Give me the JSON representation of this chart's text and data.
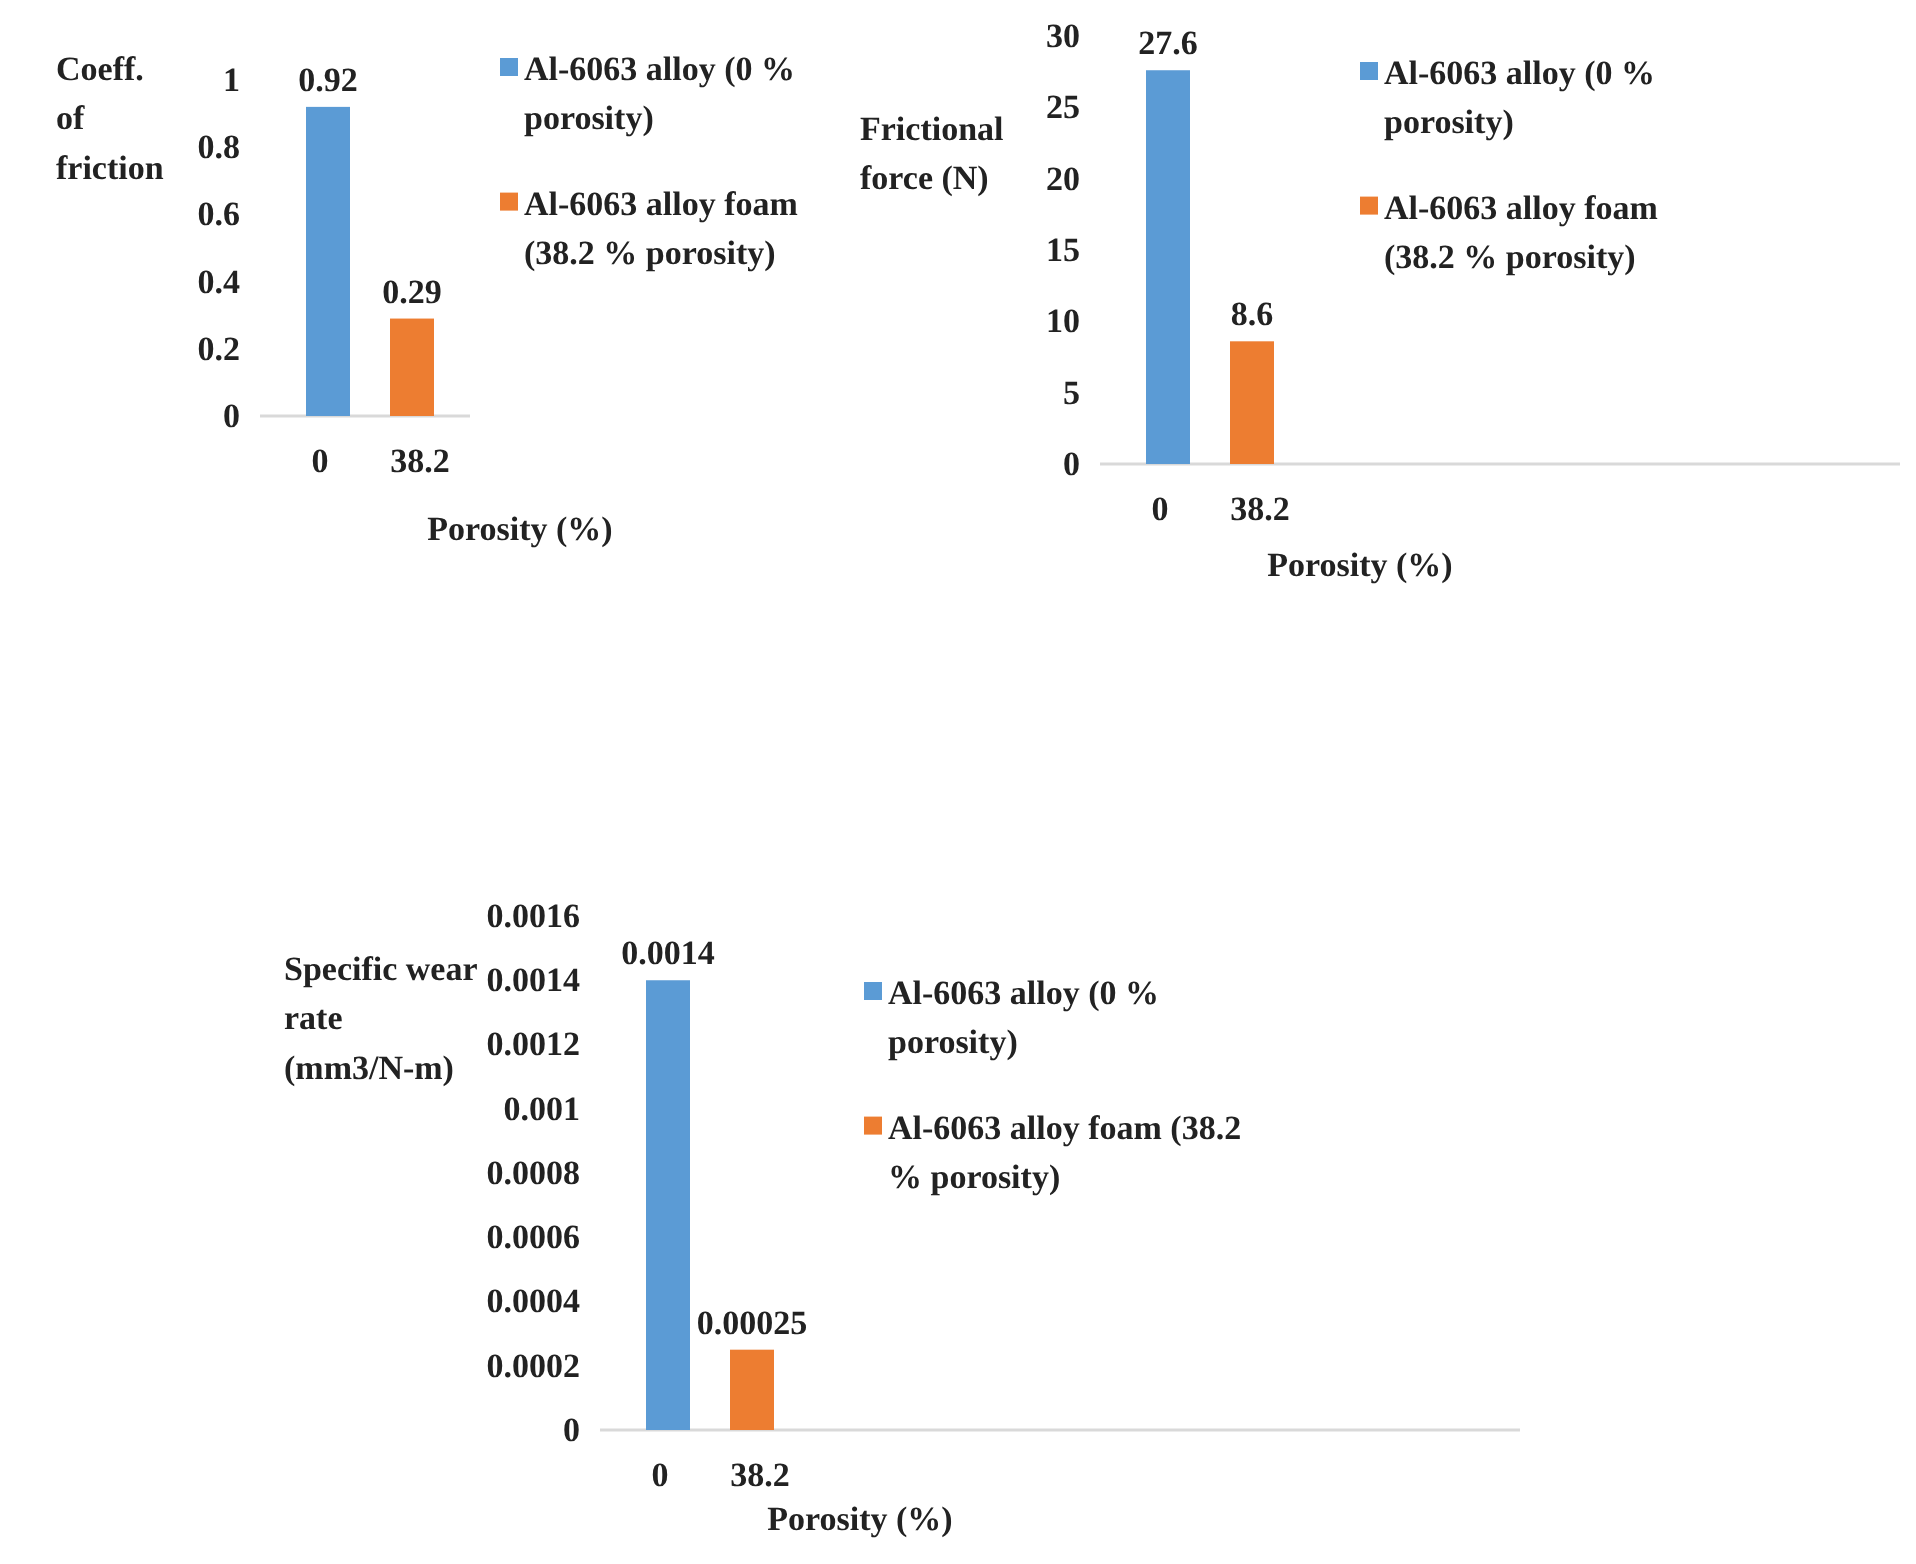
{
  "chart_data": [
    {
      "type": "bar",
      "ylabel": "Coeff. of friction",
      "xlabel": "Porosity (%)",
      "categories": [
        "0",
        "38.2"
      ],
      "series": [
        {
          "name": "Al-6063 alloy (0 % porosity)",
          "color": "#5b9bd5",
          "values": [
            0.92,
            null
          ]
        },
        {
          "name": "Al-6063 alloy foam (38.2 % porosity)",
          "color": "#ed7d31",
          "values": [
            null,
            0.29
          ]
        }
      ],
      "ylim": [
        0,
        1
      ],
      "yticks": [
        0,
        0.2,
        0.4,
        0.6,
        0.8,
        1
      ],
      "grid": false,
      "legend": "right",
      "data_labels": true
    },
    {
      "type": "bar",
      "ylabel": "Frictional force (N)",
      "xlabel": "Porosity (%)",
      "categories": [
        "0",
        "38.2"
      ],
      "series": [
        {
          "name": "Al-6063 alloy (0 % porosity)",
          "color": "#5b9bd5",
          "values": [
            27.6,
            null
          ]
        },
        {
          "name": "Al-6063 alloy foam (38.2 % porosity)",
          "color": "#ed7d31",
          "values": [
            null,
            8.6
          ]
        }
      ],
      "ylim": [
        0,
        30
      ],
      "yticks": [
        0,
        5,
        10,
        15,
        20,
        25,
        30
      ],
      "grid": false,
      "legend": "right",
      "data_labels": true
    },
    {
      "type": "bar",
      "ylabel": "Specific wear rate (mm3/N-m)",
      "xlabel": "Porosity (%)",
      "categories": [
        "0",
        "38.2"
      ],
      "series": [
        {
          "name": "Al-6063 alloy (0 % porosity)",
          "color": "#5b9bd5",
          "values": [
            0.0014,
            null
          ]
        },
        {
          "name": "Al-6063 alloy foam (38.2 % porosity)",
          "color": "#ed7d31",
          "values": [
            null,
            0.00025
          ]
        }
      ],
      "ylim": [
        0,
        0.0016
      ],
      "yticks": [
        0,
        0.0002,
        0.0004,
        0.0006,
        0.0008,
        0.001,
        0.0012,
        0.0014,
        0.0016
      ],
      "grid": false,
      "legend": "right",
      "data_labels": true
    }
  ]
}
